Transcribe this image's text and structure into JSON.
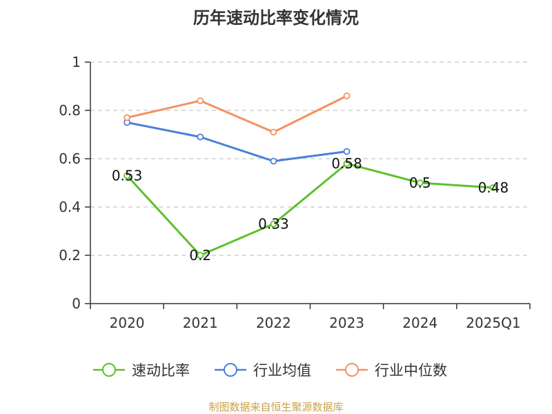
{
  "chart_data": {
    "type": "line",
    "title": "历年速动比率变化情况",
    "categories": [
      "2020",
      "2021",
      "2022",
      "2023",
      "2024",
      "2025Q1"
    ],
    "ylim": [
      0,
      1
    ],
    "yticks": [
      "0",
      "0.2",
      "0.4",
      "0.6",
      "0.8",
      "1"
    ],
    "ytick_values": [
      0,
      0.2,
      0.4,
      0.6,
      0.8,
      1
    ],
    "grid": true,
    "legend_position": "bottom",
    "series": [
      {
        "name": "速动比率",
        "color": "#5cc12b",
        "values": [
          0.53,
          0.2,
          0.33,
          0.58,
          0.5,
          0.48
        ],
        "labels": [
          "0.53",
          "0.2",
          "0.33",
          "0.58",
          "0.5",
          "0.48"
        ]
      },
      {
        "name": "行业均值",
        "color": "#4a7fdb",
        "values": [
          0.75,
          0.69,
          0.59,
          0.63,
          null,
          null
        ]
      },
      {
        "name": "行业中位数",
        "color": "#f59060",
        "values": [
          0.77,
          0.84,
          0.71,
          0.86,
          null,
          null
        ]
      }
    ]
  },
  "source": "制图数据来自恒生聚源数据库"
}
